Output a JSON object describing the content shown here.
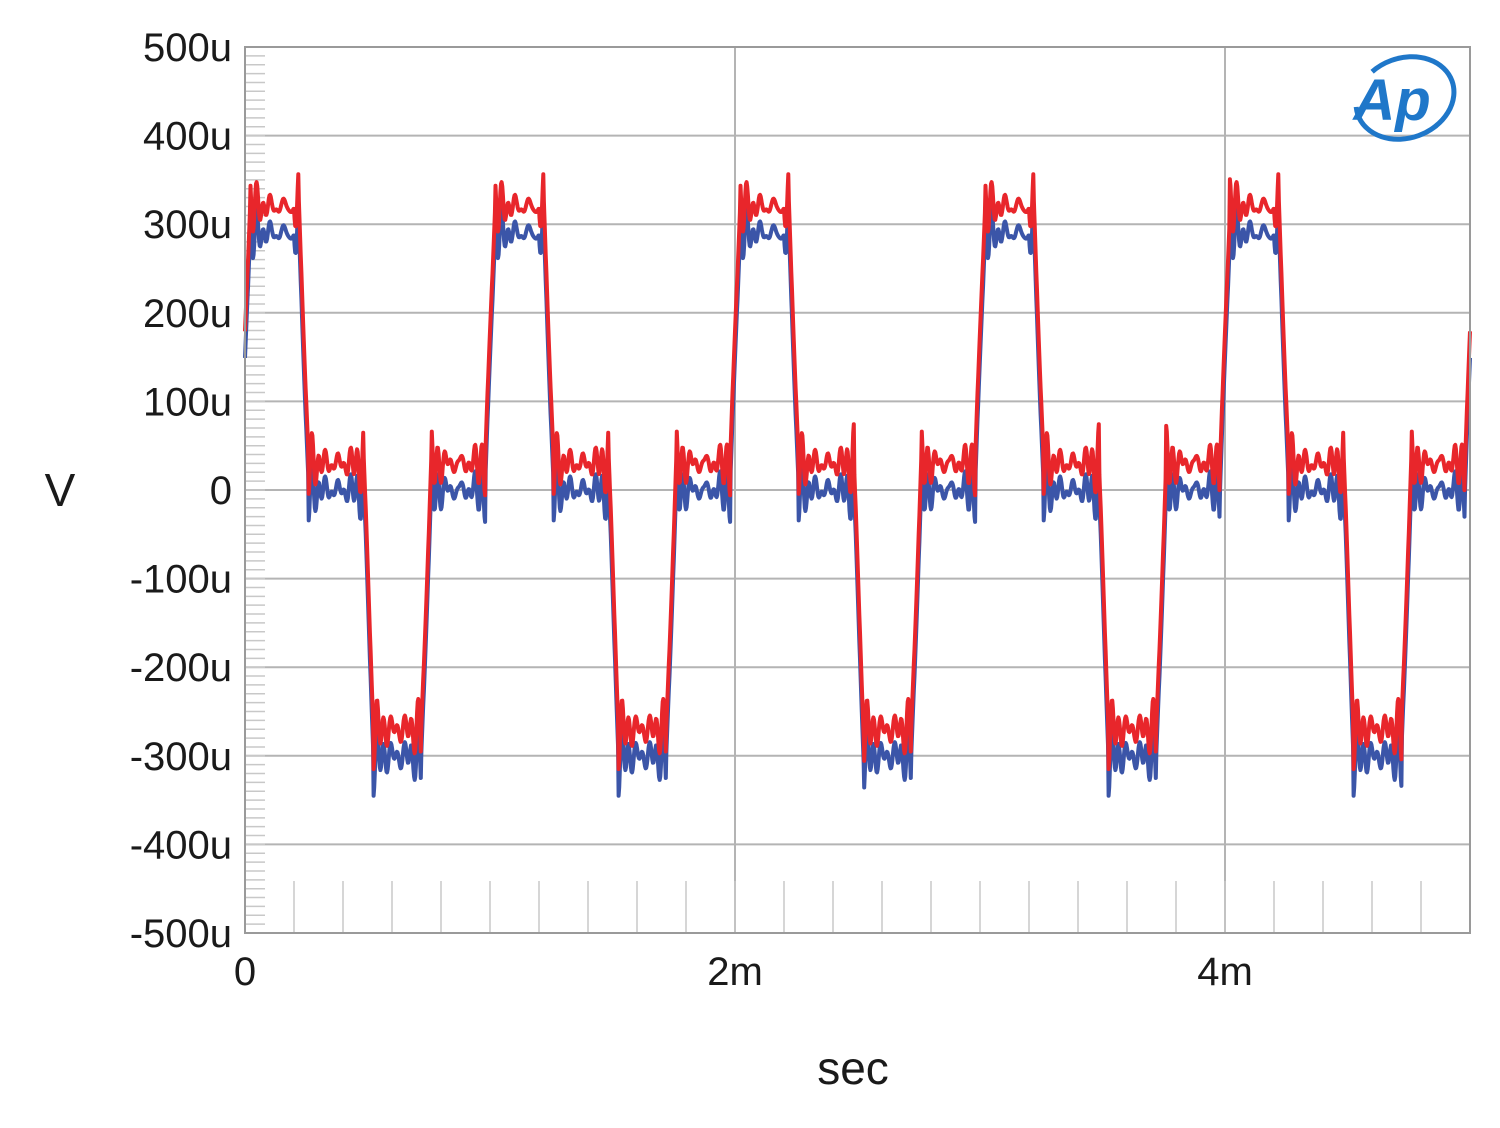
{
  "chart_data": {
    "type": "line",
    "xlabel": "sec",
    "ylabel": "V",
    "xlim": [
      0,
      0.005
    ],
    "ylim": [
      -0.0005,
      0.0005
    ],
    "x_ticks": [
      {
        "value": 0,
        "label": "0"
      },
      {
        "value": 0.002,
        "label": "2m"
      },
      {
        "value": 0.004,
        "label": "4m"
      }
    ],
    "y_ticks": [
      {
        "value": 0.0005,
        "label": "500u"
      },
      {
        "value": 0.0004,
        "label": "400u"
      },
      {
        "value": 0.0003,
        "label": "300u"
      },
      {
        "value": 0.0002,
        "label": "200u"
      },
      {
        "value": 0.0001,
        "label": "100u"
      },
      {
        "value": 0,
        "label": "0"
      },
      {
        "value": -0.0001,
        "label": "-100u"
      },
      {
        "value": -0.0002,
        "label": "-200u"
      },
      {
        "value": -0.0003,
        "label": "-300u"
      },
      {
        "value": -0.0004,
        "label": "-400u"
      },
      {
        "value": -0.0005,
        "label": "-500u"
      }
    ],
    "grid": true,
    "signal": {
      "period_s": 0.001,
      "levels_V": {
        "series1": {
          "high": 0.00032,
          "mid": 3e-05,
          "low": -0.00027
        },
        "series2": {
          "high": 0.00029,
          "mid": 0.0,
          "low": -0.0003
        }
      }
    },
    "series": [
      {
        "color": "#e8262b"
      },
      {
        "color": "#3b55a8"
      }
    ],
    "logo": {
      "text": "Ap",
      "color": "#1f77c9"
    }
  }
}
